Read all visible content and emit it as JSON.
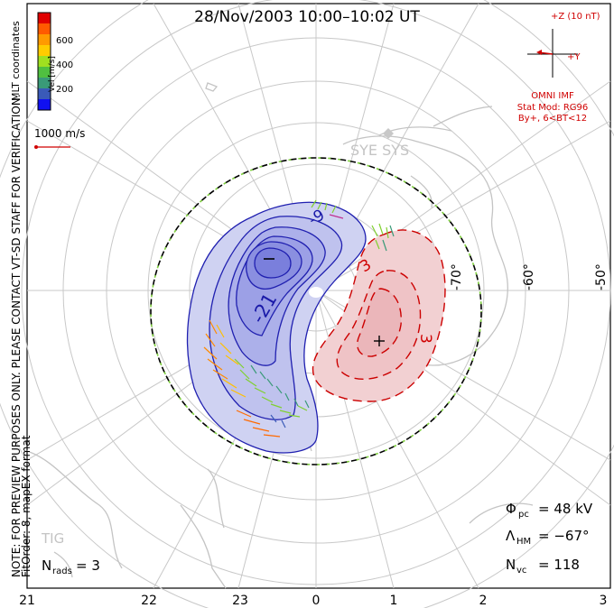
{
  "title": "28/Nov/2003 10:00–10:02 UT",
  "side_note": "NOTE: FOR PREVIEW PURPOSES ONLY. PLEASE CONTACT VT-SD STAFF FOR VERIFICATION.",
  "fit_info": "FitOrder: 8,  mapEX format",
  "coord_label": "MLT coordinates",
  "colorbar": {
    "title": "Vel [m/s]",
    "ticks": [
      "600",
      "400",
      "200"
    ],
    "colors": [
      "#e00000",
      "#ff5a00",
      "#ff9a00",
      "#ffcc00",
      "#a0e020",
      "#50c040",
      "#3a9a78",
      "#3a5ab8",
      "#1010f0"
    ]
  },
  "velocity_scale": "1000 m/s",
  "imf": {
    "z_label": "+Z (10 nT)",
    "y_label": "+Y",
    "source": "OMNI IMF",
    "stat_mod": "Stat Mod: RG96",
    "condition": "By+, 6<BT<12"
  },
  "stations": {
    "sye_sys": "SYE SYS",
    "tig": "TIG"
  },
  "latitude_labels": [
    "-70°",
    "-60°",
    "-50°"
  ],
  "mlt_labels": [
    "21",
    "22",
    "23",
    "0",
    "1",
    "2",
    "3"
  ],
  "contour_labels": {
    "neg1": "-",
    "neg2": "-21",
    "neg3": "-9",
    "pos1": "+",
    "pos2": "3",
    "pos3": "3"
  },
  "stats": {
    "phi_pc": {
      "symbol": "Φ",
      "sub": "pc",
      "value": "= 48 kV"
    },
    "lambda_hm": {
      "symbol": "Λ",
      "sub": "HM",
      "value": "= −67°"
    },
    "n_vc": {
      "symbol": "N",
      "sub": "vc",
      "value": "= 118"
    },
    "n_rads": {
      "symbol": "N",
      "sub": "rads",
      "value": "= 3"
    }
  },
  "colors": {
    "negative_cell": "#1a1aa8",
    "positive_cell": "#cc0000",
    "heppner_maynard": "#000000"
  }
}
